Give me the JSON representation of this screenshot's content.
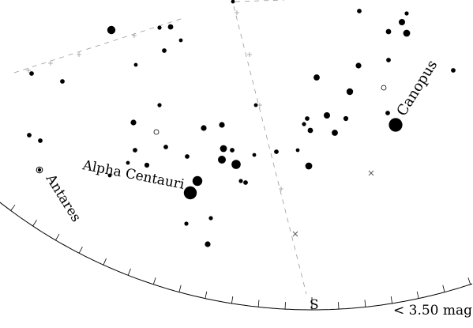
{
  "labels": {
    "star_canopus": "Canopus",
    "star_alpha_centauri": "Alpha Centauri",
    "star_antares": "Antares",
    "direction_south": "S",
    "magnitude_limit": "< 3.50 mag"
  },
  "colors": {
    "background": "#ffffff",
    "ink": "#000000",
    "grid": "#9a9a9a"
  }
}
